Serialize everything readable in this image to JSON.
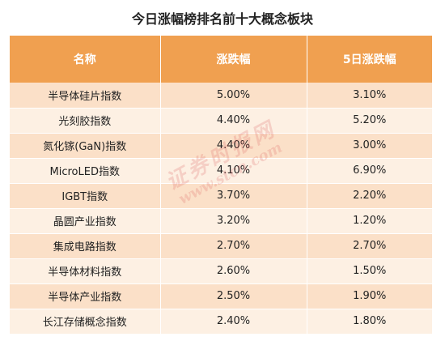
{
  "title": "今日涨幅榜排名前十大概念板块",
  "table": {
    "headers": [
      "名称",
      "涨跌幅",
      "5日涨跌幅"
    ],
    "rows": [
      [
        "半导体硅片指数",
        "5.00%",
        "3.10%"
      ],
      [
        "光刻胶指数",
        "4.40%",
        "5.20%"
      ],
      [
        "氮化镓(GaN)指数",
        "4.40%",
        "3.00%"
      ],
      [
        "MicroLED指数",
        "4.10%",
        "6.90%"
      ],
      [
        "IGBT指数",
        "3.70%",
        "2.20%"
      ],
      [
        "晶圆产业指数",
        "3.20%",
        "1.20%"
      ],
      [
        "集成电路指数",
        "2.70%",
        "2.70%"
      ],
      [
        "半导体材料指数",
        "2.60%",
        "1.50%"
      ],
      [
        "半导体产业指数",
        "2.50%",
        "1.90%"
      ],
      [
        "长江存储概念指数",
        "2.40%",
        "1.80%"
      ]
    ]
  },
  "watermark": {
    "name": "证券时报网",
    "url": "www.stcn.com"
  },
  "colors": {
    "header_bg": "#f0a050",
    "row_odd": "#fbe0c8",
    "row_even": "#fdf0e3",
    "watermark": "#dc5a5a"
  }
}
